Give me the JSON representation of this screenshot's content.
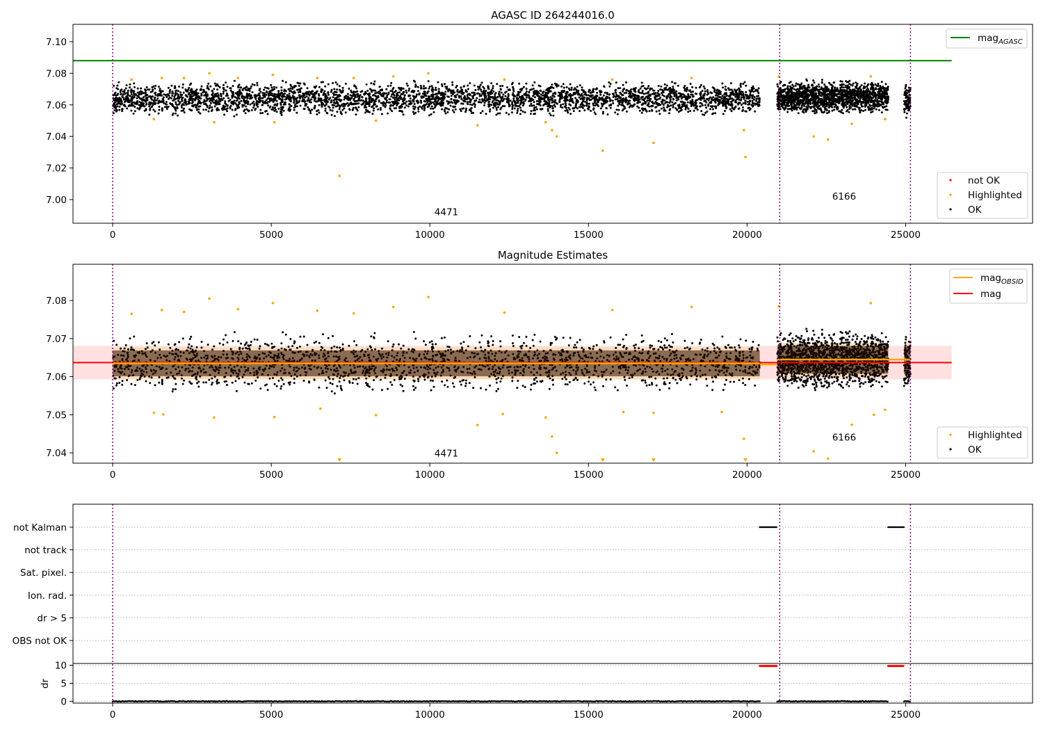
{
  "chart_data": [
    {
      "type": "scatter",
      "title": "AGASC ID 264244016.0",
      "xlim": [
        -1250,
        29000
      ],
      "ylim": [
        6.985,
        7.111
      ],
      "xticks": [
        "0",
        "5000",
        "10000",
        "15000",
        "20000",
        "25000"
      ],
      "xtick_values": [
        0,
        5000,
        10000,
        15000,
        20000,
        25000
      ],
      "yticks": [
        "7.00",
        "7.02",
        "7.04",
        "7.06",
        "7.08",
        "7.10"
      ],
      "ytick_values": [
        7.0,
        7.02,
        7.04,
        7.06,
        7.08,
        7.1
      ],
      "obsid_boundaries": [
        0,
        21030,
        25150
      ],
      "obsid_labels": [
        {
          "x": 10520,
          "y": 6.99,
          "text": "4471"
        },
        {
          "x": 23060,
          "y": 7.0,
          "text": "6166"
        }
      ],
      "mag_agasc": {
        "value": 7.088,
        "x_range": [
          -1250,
          26450
        ]
      },
      "ok_segments": [
        {
          "x": [
            0,
            20400
          ],
          "center": 7.064,
          "spread": 0.009
        },
        {
          "x": [
            20950,
            24450
          ],
          "center": 7.065,
          "spread": 0.009
        },
        {
          "x": [
            24950,
            25150
          ],
          "center": 7.063,
          "spread": 0.009
        }
      ],
      "highlighted_points": [
        [
          600,
          7.076
        ],
        [
          1300,
          7.051
        ],
        [
          1550,
          7.077
        ],
        [
          2250,
          7.077
        ],
        [
          3050,
          7.08
        ],
        [
          3200,
          7.049
        ],
        [
          3950,
          7.077
        ],
        [
          5050,
          7.079
        ],
        [
          5100,
          7.049
        ],
        [
          6450,
          7.077
        ],
        [
          7150,
          7.015
        ],
        [
          7600,
          7.077
        ],
        [
          8300,
          7.05
        ],
        [
          8850,
          7.078
        ],
        [
          9950,
          7.08
        ],
        [
          11500,
          7.047
        ],
        [
          12350,
          7.076
        ],
        [
          13650,
          7.049
        ],
        [
          13850,
          7.044
        ],
        [
          14000,
          7.04
        ],
        [
          15450,
          7.031
        ],
        [
          15750,
          7.076
        ],
        [
          17050,
          7.036
        ],
        [
          18250,
          7.077
        ],
        [
          19900,
          7.044
        ],
        [
          19950,
          7.027
        ],
        [
          21000,
          7.078
        ],
        [
          22100,
          7.04
        ],
        [
          22550,
          7.038
        ],
        [
          23300,
          7.048
        ],
        [
          23900,
          7.078
        ],
        [
          24350,
          7.051
        ]
      ],
      "legends": [
        {
          "position": "top-right",
          "entries": [
            {
              "label": "mag",
              "sub": "AGASC",
              "color": "#008000",
              "marker": "line"
            }
          ]
        },
        {
          "position": "bottom-right",
          "entries": [
            {
              "label": "not OK",
              "color": "#ff0000",
              "marker": "dot"
            },
            {
              "label": "Highlighted",
              "color": "#ffa500",
              "marker": "dot"
            },
            {
              "label": "OK",
              "color": "#000000",
              "marker": "dot"
            }
          ]
        }
      ]
    },
    {
      "type": "scatter",
      "title": "Magnitude Estimates",
      "xlim": [
        -1250,
        29000
      ],
      "ylim": [
        7.0373,
        7.0895
      ],
      "xticks": [
        "0",
        "5000",
        "10000",
        "15000",
        "20000",
        "25000"
      ],
      "xtick_values": [
        0,
        5000,
        10000,
        15000,
        20000,
        25000
      ],
      "yticks": [
        "7.04",
        "7.05",
        "7.06",
        "7.07",
        "7.08"
      ],
      "ytick_values": [
        7.04,
        7.05,
        7.06,
        7.07,
        7.08
      ],
      "obsid_boundaries": [
        0,
        21030,
        25150
      ],
      "obsid_labels": [
        {
          "x": 10520,
          "y": 7.039,
          "text": "4471"
        },
        {
          "x": 23060,
          "y": 7.0432,
          "text": "6166"
        }
      ],
      "mag": {
        "value": 7.0637,
        "band": [
          7.0593,
          7.0681
        ],
        "x_range": [
          -1250,
          26450
        ]
      },
      "mag_obsid": [
        {
          "x": [
            0,
            20400
          ],
          "value": 7.0635
        },
        {
          "x": [
            20400,
            20950
          ],
          "value": 7.0632
        },
        {
          "x": [
            20950,
            24450
          ],
          "value": 7.0645
        },
        {
          "x": [
            24450,
            25150
          ],
          "value": 7.0645
        }
      ],
      "obsid_bands": [
        {
          "x": [
            0,
            20400
          ],
          "band": [
            7.0593,
            7.0677
          ]
        },
        {
          "x": [
            20950,
            24450
          ],
          "band": [
            7.06,
            7.0689
          ]
        },
        {
          "x": [
            24950,
            25150
          ],
          "band": [
            7.0598,
            7.0688
          ]
        }
      ],
      "ok_segments": [
        {
          "x": [
            0,
            20400
          ],
          "center": 7.0636,
          "spread": 0.0065
        },
        {
          "x": [
            20950,
            24450
          ],
          "center": 7.0645,
          "spread": 0.0065
        },
        {
          "x": [
            24950,
            25150
          ],
          "center": 7.0635,
          "spread": 0.0065
        }
      ],
      "highlighted_points": [
        [
          600,
          7.0765
        ],
        [
          1300,
          7.0505
        ],
        [
          1550,
          7.0775
        ],
        [
          1600,
          7.0501
        ],
        [
          2250,
          7.077
        ],
        [
          3050,
          7.0805
        ],
        [
          3200,
          7.0493
        ],
        [
          3950,
          7.0777
        ],
        [
          5050,
          7.0793
        ],
        [
          5100,
          7.0494
        ],
        [
          6450,
          7.0773
        ],
        [
          6550,
          7.0516
        ],
        [
          7600,
          7.0766
        ],
        [
          8300,
          7.0499
        ],
        [
          8850,
          7.0783
        ],
        [
          9950,
          7.0809
        ],
        [
          11500,
          7.0473
        ],
        [
          12350,
          7.0768
        ],
        [
          12300,
          7.0502
        ],
        [
          13650,
          7.0493
        ],
        [
          13850,
          7.0443
        ],
        [
          14000,
          7.04
        ],
        [
          15750,
          7.0775
        ],
        [
          16100,
          7.0507
        ],
        [
          17050,
          7.0505
        ],
        [
          18250,
          7.0783
        ],
        [
          19200,
          7.0507
        ],
        [
          19900,
          7.0437
        ],
        [
          21000,
          7.0785
        ],
        [
          22100,
          7.0404
        ],
        [
          22550,
          7.0385
        ],
        [
          23300,
          7.0474
        ],
        [
          23900,
          7.0793
        ],
        [
          24350,
          7.0513
        ],
        [
          24000,
          7.05
        ]
      ],
      "offscale_points": [
        7150,
        15450,
        17050,
        19950
      ],
      "legends": [
        {
          "position": "top-right",
          "entries": [
            {
              "label": "mag",
              "sub": "OBSID",
              "color": "#ffa500",
              "marker": "line"
            },
            {
              "label": "mag",
              "sub": "",
              "color": "#ff0000",
              "marker": "line"
            }
          ]
        },
        {
          "position": "bottom-right",
          "entries": [
            {
              "label": "Highlighted",
              "color": "#ffa500",
              "marker": "dot"
            },
            {
              "label": "OK",
              "color": "#000000",
              "marker": "dot"
            }
          ]
        }
      ]
    },
    {
      "type": "scatter",
      "title": "",
      "xlim": [
        -1250,
        29000
      ],
      "flags_panel": {
        "categories": [
          "not Kalman",
          "not track",
          "Sat. pixel.",
          "Ion. rad.",
          "dr > 5",
          "OBS not OK"
        ],
        "flagged_ranges": {
          "not Kalman": [
            [
              20400,
              20950
            ],
            [
              24450,
              24950
            ]
          ]
        }
      },
      "dr_panel": {
        "ylabel": "dr",
        "yticks": [
          "0",
          "5",
          "10"
        ],
        "ytick_values": [
          0,
          5,
          10
        ],
        "ylim": [
          -0.5,
          10.5
        ],
        "high_ranges": [
          [
            20400,
            20950
          ],
          [
            24450,
            24950
          ]
        ],
        "high_value": 9.8,
        "low_segments": [
          [
            0,
            20400
          ],
          [
            20950,
            24450
          ],
          [
            24950,
            25150
          ]
        ]
      },
      "xticks": [
        "0",
        "5000",
        "10000",
        "15000",
        "20000",
        "25000"
      ],
      "xtick_values": [
        0,
        5000,
        10000,
        15000,
        20000,
        25000
      ],
      "obsid_boundaries": [
        0,
        21030,
        25150
      ]
    }
  ]
}
